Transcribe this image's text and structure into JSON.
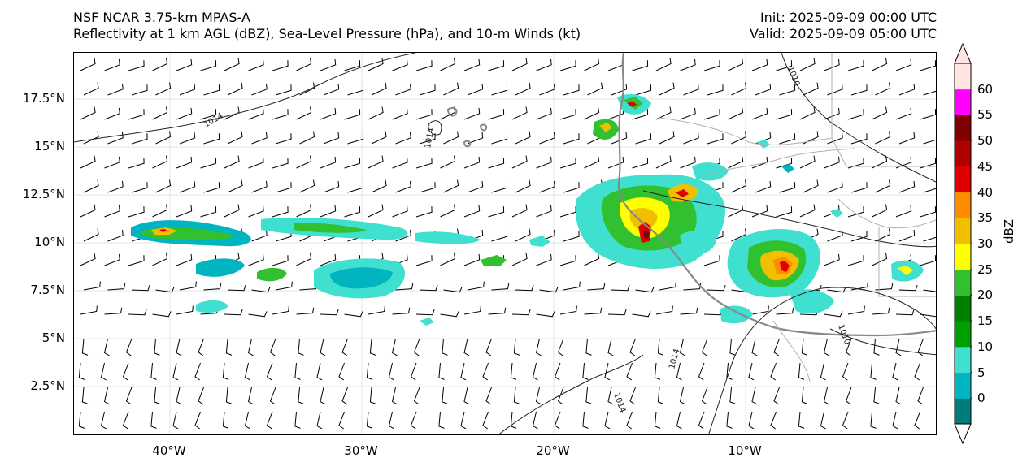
{
  "title": {
    "left_line1": "NSF NCAR 3.75-km MPAS-A",
    "left_line2": "Reflectivity at 1 km AGL (dBZ), Sea-Level Pressure (hPa), and 10-m Winds (kt)",
    "right_line1": "Init: 2025-09-09 00:00 UTC",
    "right_line2": "Valid: 2025-09-09 05:00 UTC"
  },
  "axes": {
    "y_ticks": [
      "17.5°N",
      "15°N",
      "12.5°N",
      "10°N",
      "7.5°N",
      "5°N",
      "2.5°N"
    ],
    "x_ticks": [
      "40°W",
      "30°W",
      "20°W",
      "10°W"
    ]
  },
  "contour_labels": [
    "1014",
    "1014",
    "1010",
    "1014",
    "1014",
    "1010"
  ],
  "colorbar": {
    "title": "dBZ",
    "ticks": [
      "0",
      "5",
      "10",
      "15",
      "20",
      "25",
      "30",
      "35",
      "40",
      "45",
      "50",
      "55",
      "60"
    ],
    "colors": [
      "#007c7c",
      "#00b4c0",
      "#40e0d0",
      "#00a000",
      "#008000",
      "#30c030",
      "#ffff00",
      "#f0c000",
      "#ff8c00",
      "#e00000",
      "#b00000",
      "#800000",
      "#ff00ff",
      "#ffe4e1"
    ]
  }
}
